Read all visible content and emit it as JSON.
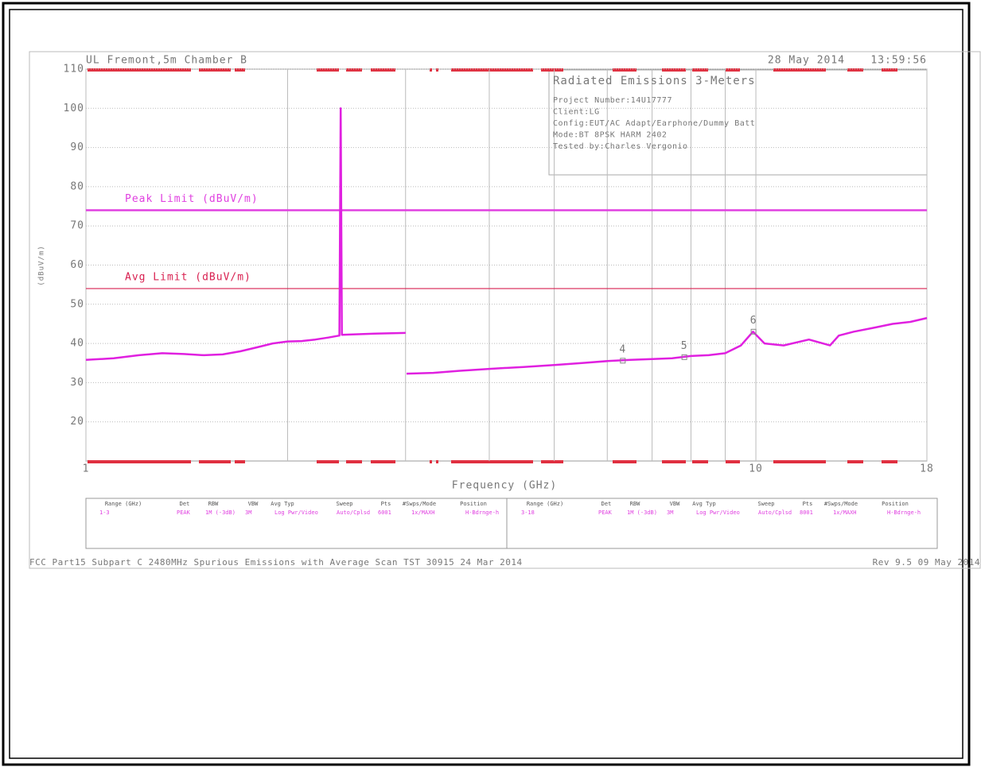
{
  "chart_data": {
    "type": "line",
    "title": "UL Fremont,5m Chamber B",
    "date": "28 May 2014",
    "time": "13:59:56",
    "xlabel": "Frequency (GHz)",
    "ylabel": "(dBuV/m)",
    "xlog": true,
    "xlim": [
      1,
      18
    ],
    "xticks": [
      1,
      10,
      18
    ],
    "xgrid_minor": [
      2,
      3,
      4,
      5,
      6,
      7,
      8,
      9
    ],
    "ylim": [
      10,
      110
    ],
    "yticks": [
      20,
      30,
      40,
      50,
      60,
      70,
      80,
      90,
      100,
      110
    ],
    "grid": true,
    "series": [
      {
        "name": "Trace",
        "color": "#e020e0",
        "x": [
          1.0,
          1.1,
          1.2,
          1.3,
          1.4,
          1.5,
          1.6,
          1.7,
          1.8,
          1.9,
          2.0,
          2.1,
          2.2,
          2.3,
          2.39,
          2.4,
          2.41,
          2.5,
          2.7,
          3.0,
          3.0,
          3.01,
          3.3,
          3.6,
          4.0,
          4.5,
          5.0,
          5.5,
          6.0,
          6.5,
          7.0,
          7.5,
          8.0,
          8.5,
          9.0,
          9.5,
          9.9,
          10.3,
          11,
          12,
          12.9,
          13.3,
          14,
          15,
          16,
          17,
          18
        ],
        "values": [
          35.8,
          36.2,
          37.0,
          37.5,
          37.3,
          37.0,
          37.2,
          38.0,
          39.0,
          40.0,
          40.5,
          40.6,
          41.0,
          41.5,
          42.0,
          100,
          42.2,
          42.3,
          42.5,
          42.7,
          null,
          32.3,
          32.5,
          33.0,
          33.5,
          34.0,
          34.5,
          35.0,
          35.5,
          35.8,
          36.0,
          36.2,
          36.8,
          37.0,
          37.5,
          39.5,
          43.0,
          40.0,
          39.5,
          41.0,
          39.5,
          42.0,
          43.0,
          44.0,
          45.0,
          45.5,
          46.5
        ]
      }
    ],
    "limits": [
      {
        "name": "Peak Limit (dBuV/m)",
        "value": 74,
        "color": "#e040e0"
      },
      {
        "name": "Avg Limit (dBuV/m)",
        "value": 54,
        "color": "#d82050"
      }
    ],
    "markers": [
      {
        "label": "4",
        "x": 6.33,
        "y": 35.6
      },
      {
        "label": "5",
        "x": 7.82,
        "y": 36.5
      },
      {
        "label": "6",
        "x": 9.92,
        "y": 43.0
      }
    ]
  },
  "info": {
    "title": "Radiated Emissions 3-Meters",
    "lines": [
      "Project Number:14U17777",
      "Client:LG",
      "Config:EUT/AC Adapt/Earphone/Dummy Batt",
      "Mode:BT 8PSK HARM 2402",
      "Tested by:Charles Vergonio"
    ]
  },
  "settings": {
    "headers": [
      "Range (GHz)",
      "Det",
      "RBW",
      "VBW",
      "Avg Typ",
      "Sweep",
      "Pts",
      "#Swps/Mode",
      "Position"
    ],
    "rows": [
      [
        "1-3",
        "PEAK",
        "1M (-3dB)",
        "3M",
        "Log Pwr/Video",
        "Auto/Cplsd",
        "6001",
        "1x/MAXH",
        "H-Bdrnge-h"
      ],
      [
        "3-18",
        "PEAK",
        "1M (-3dB)",
        "3M",
        "Log Pwr/Video",
        "Auto/Cplsd",
        "8001",
        "1x/MAXH",
        "H-Bdrnge-h"
      ]
    ]
  },
  "footer": {
    "left": "FCC Part15 Subpart C 2480MHz Spurious Emissions with Average Scan TST 30915 24 Mar 2014",
    "right": "Rev 9.5 09 May 2014"
  }
}
